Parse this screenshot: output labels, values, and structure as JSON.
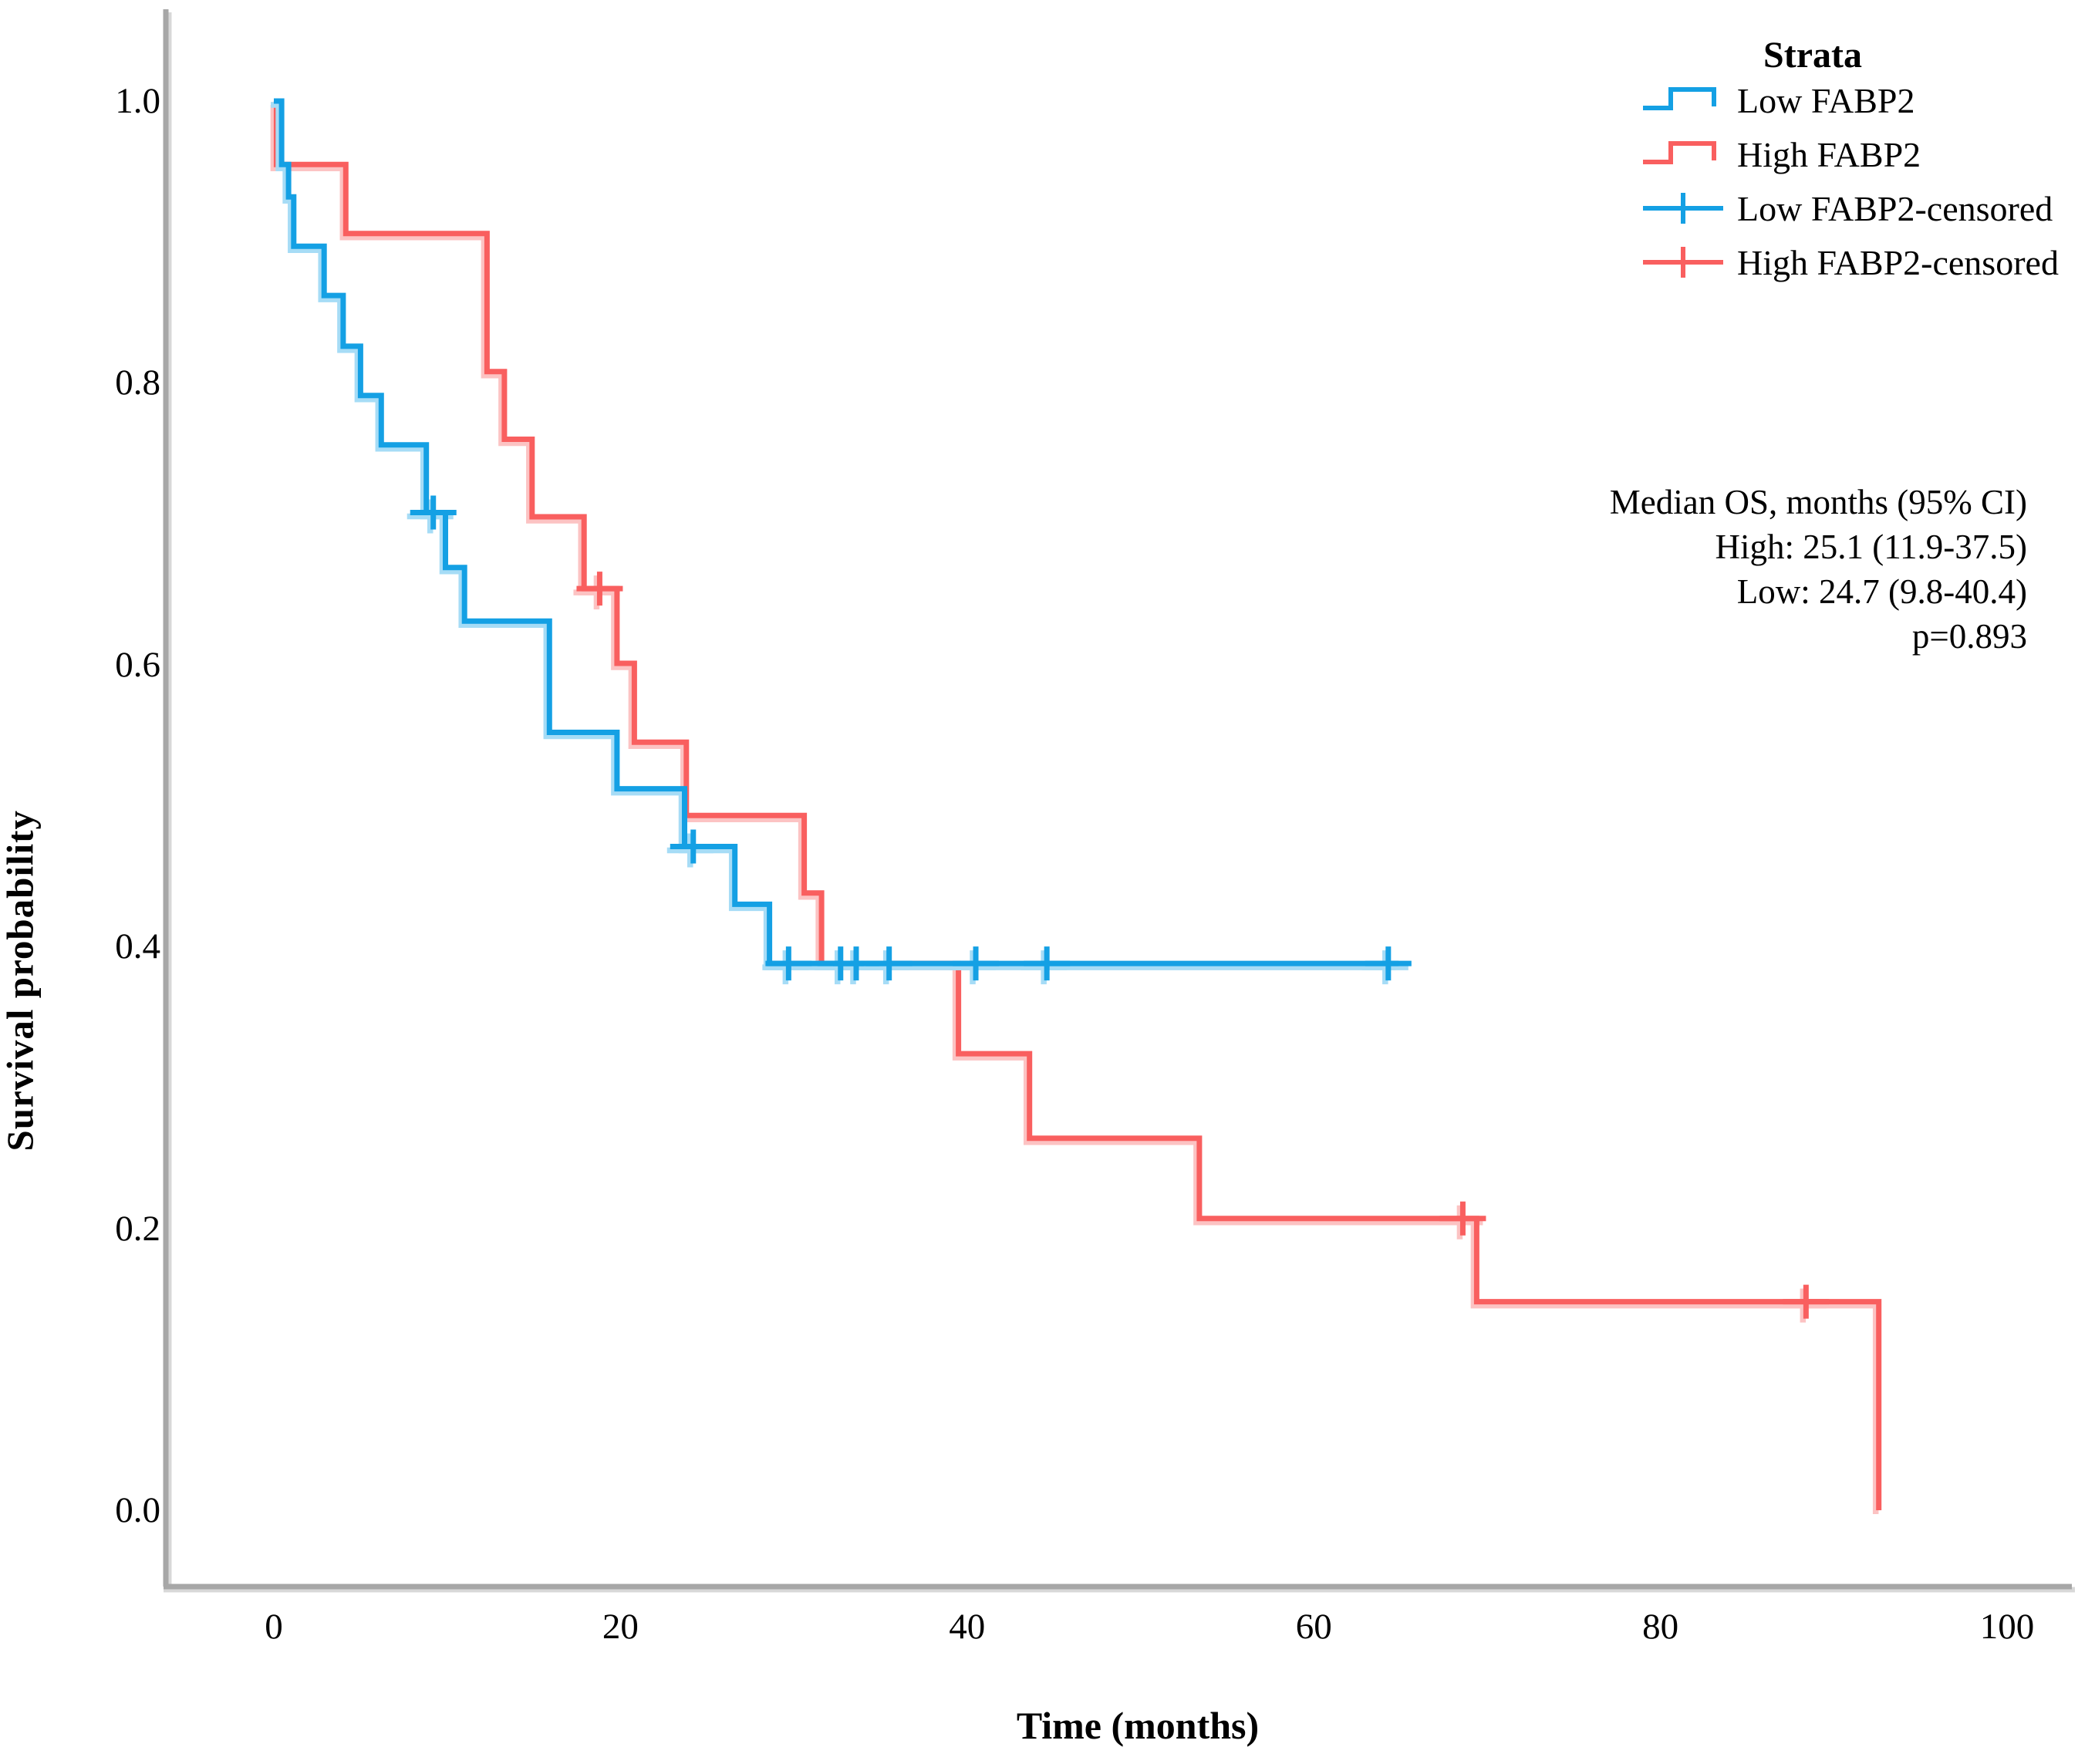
{
  "page": {
    "background": "#ffffff"
  },
  "y_axis": {
    "title": "Survival probability",
    "tick_labels": [
      "1.0",
      "0.8",
      "0.6",
      "0.4",
      "0.2",
      "0.0"
    ],
    "tick_values": [
      1.0,
      0.8,
      0.6,
      0.4,
      0.2,
      0.0
    ]
  },
  "x_axis": {
    "title": "Time (months)",
    "tick_labels": [
      "0",
      "20",
      "40",
      "60",
      "80",
      "100"
    ],
    "tick_values": [
      0,
      20,
      40,
      60,
      80,
      100
    ]
  },
  "legend": {
    "title": "Strata",
    "items": [
      {
        "label": "Low FABP2",
        "color": "#14a0e4",
        "halo": "#a6dcf6",
        "type": "step"
      },
      {
        "label": "High FABP2",
        "color": "#f95f5f",
        "halo": "#fcc3c3",
        "type": "step"
      },
      {
        "label": "Low FABP2-censored",
        "color": "#14a0e4",
        "halo": "#a6dcf6",
        "type": "censor"
      },
      {
        "label": "High FABP2-censored",
        "color": "#f95f5f",
        "halo": "#fcc3c3",
        "type": "censor"
      }
    ]
  },
  "annotation": {
    "line1": "Median OS, months (95% CI)",
    "line2": "High: 25.1 (11.9-37.5)",
    "line3": "Low: 24.7 (9.8-40.4)",
    "line4": "p=0.893"
  },
  "chart_data": {
    "type": "line",
    "subtype": "kaplan-meier-step",
    "title": "",
    "xlabel": "Time (months)",
    "ylabel": "Survival probability",
    "xlim": [
      0,
      100
    ],
    "ylim": [
      0.0,
      1.0
    ],
    "x_ticks": [
      0,
      20,
      40,
      60,
      80,
      100
    ],
    "y_ticks": [
      1.0,
      0.8,
      0.6,
      0.4,
      0.2,
      0.0
    ],
    "grid": false,
    "legend_position": "top-right",
    "series": [
      {
        "name": "High FABP2",
        "color": "#f95f5f",
        "halo_color": "#fcc3c3",
        "start": [
          0,
          1.0
        ],
        "drops": [
          [
            0.15,
            0.955
          ],
          [
            4.15,
            0.906
          ],
          [
            12.3,
            0.808
          ],
          [
            13.3,
            0.76
          ],
          [
            14.9,
            0.705
          ],
          [
            17.9,
            0.654
          ],
          [
            19.8,
            0.601
          ],
          [
            20.8,
            0.545
          ],
          [
            23.8,
            0.493
          ],
          [
            30.6,
            0.438
          ],
          [
            31.6,
            0.388
          ],
          [
            39.5,
            0.324
          ],
          [
            43.6,
            0.264
          ],
          [
            53.4,
            0.207
          ],
          [
            69.4,
            0.148
          ],
          [
            92.6,
            0.0
          ]
        ],
        "end_time": null,
        "censored": [
          [
            18.8,
            0.654
          ],
          [
            68.6,
            0.207
          ],
          [
            88.4,
            0.148
          ]
        ],
        "median_os": "25.1 (11.9-37.5)"
      },
      {
        "name": "Low FABP2",
        "color": "#14a0e4",
        "halo_color": "#a6dcf6",
        "start": [
          0,
          1.0
        ],
        "drops": [
          [
            0.45,
            0.955
          ],
          [
            0.85,
            0.932
          ],
          [
            1.15,
            0.897
          ],
          [
            2.9,
            0.862
          ],
          [
            4.0,
            0.826
          ],
          [
            5.0,
            0.791
          ],
          [
            6.2,
            0.756
          ],
          [
            8.8,
            0.708
          ],
          [
            9.9,
            0.669
          ],
          [
            11.0,
            0.631
          ],
          [
            15.9,
            0.552
          ],
          [
            19.8,
            0.512
          ],
          [
            23.7,
            0.471
          ],
          [
            26.6,
            0.43
          ],
          [
            28.6,
            0.388
          ]
        ],
        "end_time": 64.9,
        "censored": [
          [
            9.2,
            0.708
          ],
          [
            24.2,
            0.471
          ],
          [
            29.7,
            0.388
          ],
          [
            32.7,
            0.388
          ],
          [
            33.6,
            0.388
          ],
          [
            35.5,
            0.388
          ],
          [
            40.5,
            0.388
          ],
          [
            44.6,
            0.388
          ],
          [
            64.3,
            0.388
          ]
        ],
        "median_os": "24.7 (9.8-40.4)"
      }
    ],
    "p_value": "p=0.893"
  }
}
